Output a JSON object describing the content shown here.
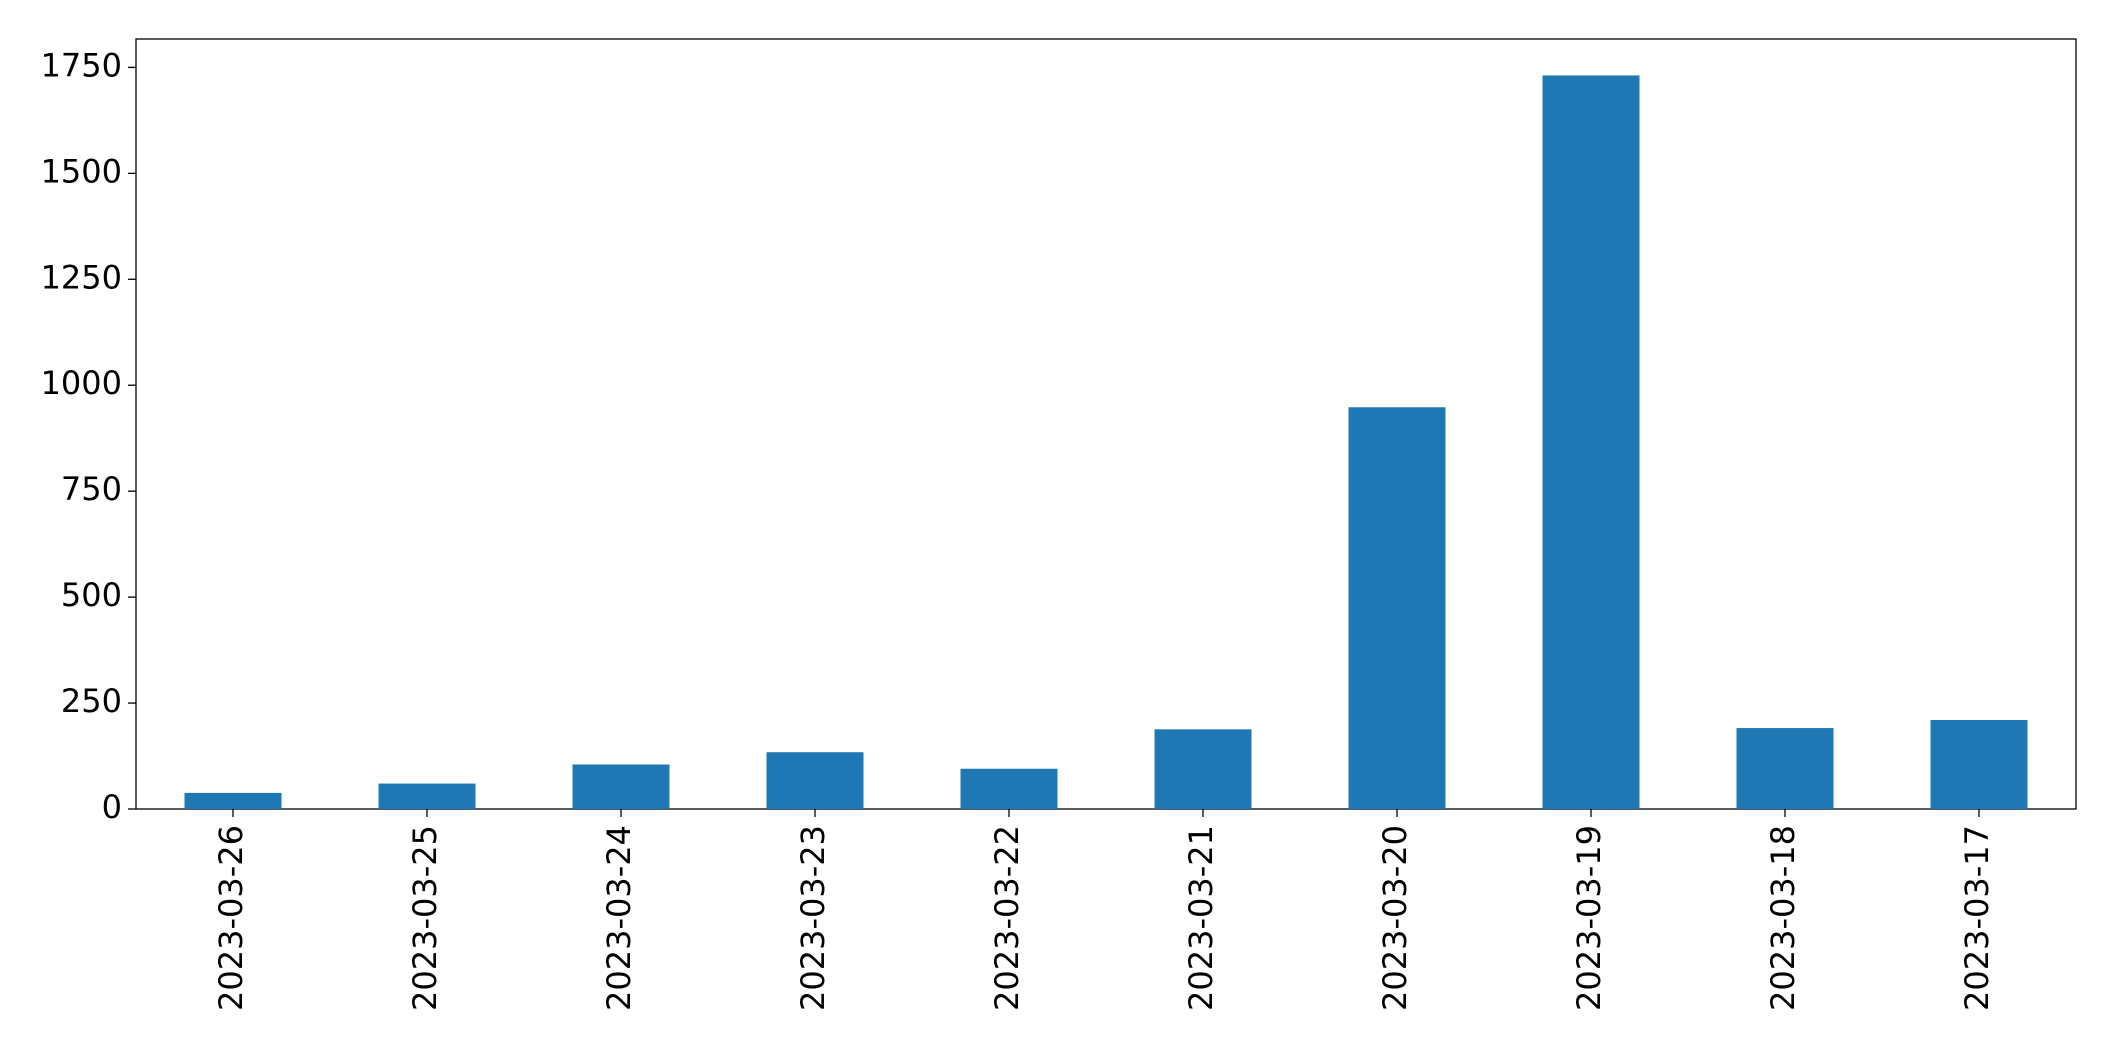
{
  "chart_data": {
    "type": "bar",
    "categories": [
      "2023-03-26",
      "2023-03-25",
      "2023-03-24",
      "2023-03-23",
      "2023-03-22",
      "2023-03-21",
      "2023-03-20",
      "2023-03-19",
      "2023-03-18",
      "2023-03-17"
    ],
    "values": [
      38,
      60,
      105,
      134,
      95,
      188,
      948,
      1731,
      191,
      210
    ],
    "color": "#1f77b4",
    "ylim": [
      0,
      1817
    ],
    "yticks": [
      0,
      250,
      500,
      750,
      1000,
      1250,
      1500,
      1750
    ],
    "grid": false
  }
}
